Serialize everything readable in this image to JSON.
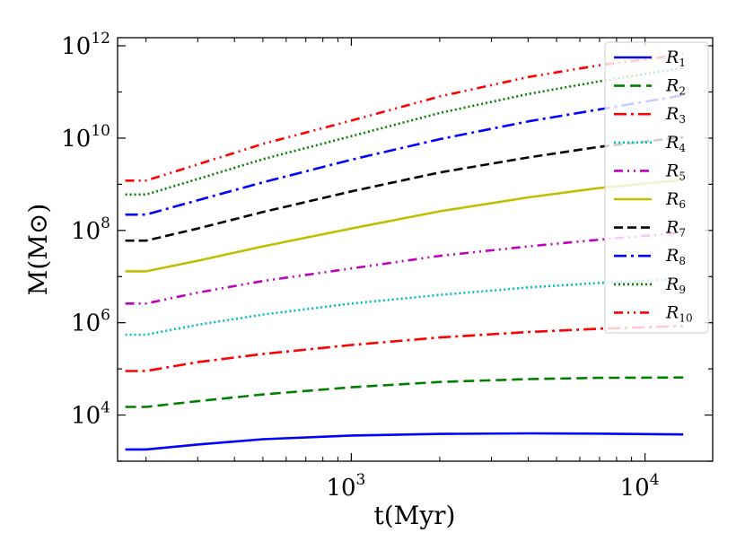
{
  "chart_data": {
    "type": "line",
    "title": "",
    "xlabel": "t(Myr)",
    "ylabel": "M(M⊙)",
    "xscale": "log",
    "yscale": "log",
    "xlim": [
      160,
      17000
    ],
    "ylim": [
      1000,
      1500000000000
    ],
    "xticks": [
      {
        "value": 1000,
        "base": "10",
        "exp": "3"
      },
      {
        "value": 10000,
        "base": "10",
        "exp": "4"
      }
    ],
    "yticks": [
      {
        "value": 10000,
        "base": "10",
        "exp": "4"
      },
      {
        "value": 1000000,
        "base": "10",
        "exp": "6"
      },
      {
        "value": 100000000,
        "base": "10",
        "exp": "8"
      },
      {
        "value": 10000000000,
        "base": "10",
        "exp": "10"
      },
      {
        "value": 1000000000000,
        "base": "10",
        "exp": "12"
      }
    ],
    "grid": false,
    "legend_position": "top-right",
    "x": [
      170,
      200,
      300,
      500,
      1000,
      2000,
      4000,
      7000,
      13500
    ],
    "series": [
      {
        "name": "R",
        "sub": "1",
        "color": "#0000ff",
        "dash": "",
        "values": [
          1800,
          1800,
          2300,
          3000,
          3600,
          3900,
          4000,
          3950,
          3800
        ]
      },
      {
        "name": "R",
        "sub": "2",
        "color": "#008000",
        "dash": "12,6",
        "values": [
          15000,
          15000,
          20000,
          28000,
          40000,
          52000,
          60000,
          64000,
          65000
        ]
      },
      {
        "name": "R",
        "sub": "3",
        "color": "#ff0000",
        "dash": "14,5,3,5",
        "values": [
          90000,
          90000,
          140000,
          210000,
          330000,
          480000,
          630000,
          740000,
          850000
        ]
      },
      {
        "name": "R",
        "sub": "4",
        "color": "#00bfbf",
        "dash": "2,3",
        "values": [
          550000,
          550000,
          900000,
          1500000,
          2600000,
          4000000,
          5800000,
          7300000,
          9000000
        ]
      },
      {
        "name": "R",
        "sub": "5",
        "color": "#bf00bf",
        "dash": "10,5,2,5,2,5",
        "values": [
          2600000,
          2600000,
          4500000,
          8000000,
          15000000,
          28000000,
          45000000,
          63000000,
          90000000
        ]
      },
      {
        "name": "R",
        "sub": "6",
        "color": "#bfbf00",
        "dash": "",
        "values": [
          13000000,
          13000000,
          22000000,
          45000000,
          110000000,
          260000000,
          520000000,
          830000000,
          1250000000
        ]
      },
      {
        "name": "R",
        "sub": "7",
        "color": "#000000",
        "dash": "10,5",
        "values": [
          60000000,
          60000000,
          110000000,
          250000000,
          700000000,
          1800000000,
          3800000000,
          6500000000,
          10500000000
        ]
      },
      {
        "name": "R",
        "sub": "8",
        "color": "#0000ff",
        "dash": "14,5,3,5",
        "values": [
          220000000,
          220000000,
          450000000,
          1100000000,
          3400000000,
          9500000000,
          23000000000,
          42000000000,
          85000000000
        ]
      },
      {
        "name": "R",
        "sub": "9",
        "color": "#008000",
        "dash": "2,3",
        "values": [
          600000000,
          600000000,
          1300000000,
          3500000000,
          11000000000,
          35000000000,
          90000000000,
          170000000000,
          330000000000
        ]
      },
      {
        "name": "R",
        "sub": "10",
        "color": "#ff0000",
        "dash": "10,5,2,5,2,5",
        "values": [
          1200000000,
          1200000000,
          2700000000,
          7500000000,
          24000000000,
          80000000000,
          210000000000,
          380000000000,
          650000000000
        ]
      }
    ]
  }
}
